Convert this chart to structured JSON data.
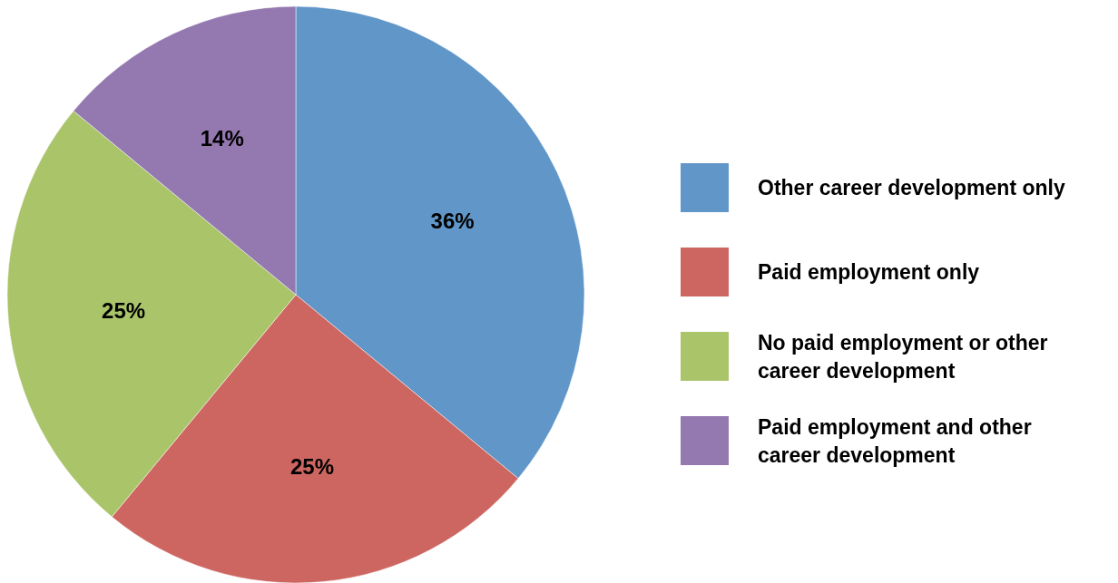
{
  "chart_data": {
    "type": "pie",
    "categories": [
      "Other career development only",
      "Paid employment only",
      "No paid employment or other career development",
      "Paid employment and other career development"
    ],
    "values": [
      36,
      25,
      25,
      14
    ],
    "colors": [
      "#6096c8",
      "#cd6660",
      "#aac46a",
      "#9479b0"
    ],
    "value_labels": [
      "36%",
      "25%",
      "25%",
      "14%"
    ],
    "legend": "right"
  }
}
